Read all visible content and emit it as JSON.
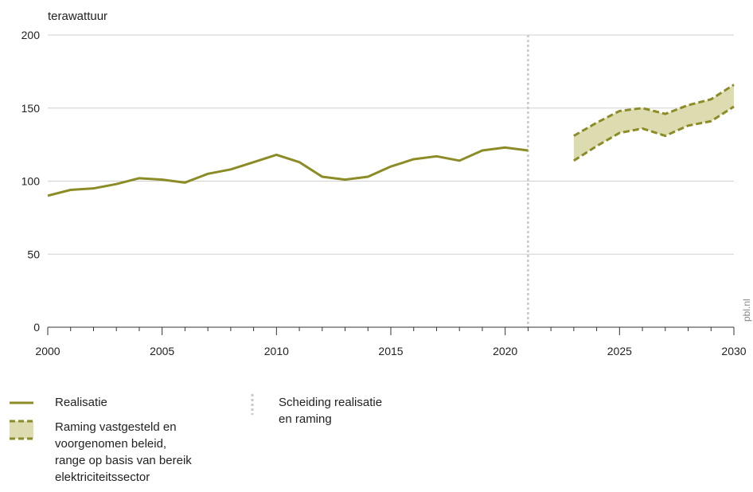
{
  "chart_data": {
    "type": "line",
    "unit_label": "terawattuur",
    "xlim": [
      2000,
      2030
    ],
    "ylim": [
      0,
      200
    ],
    "x_ticks": [
      2000,
      2005,
      2010,
      2015,
      2020,
      2025,
      2030
    ],
    "y_ticks": [
      0,
      50,
      100,
      150,
      200
    ],
    "grid": true,
    "divider_year": 2021,
    "watermark": "pbl.nl",
    "colors": {
      "line": "#8c8c26",
      "band_fill": "#dcdcb0",
      "divider": "#c8c8c8",
      "grid": "#d0d0d0",
      "axis": "#333333"
    },
    "series": [
      {
        "name": "Realisatie",
        "x": [
          2000,
          2001,
          2002,
          2003,
          2004,
          2005,
          2006,
          2007,
          2008,
          2009,
          2010,
          2011,
          2012,
          2013,
          2014,
          2015,
          2016,
          2017,
          2018,
          2019,
          2020,
          2021
        ],
        "values": [
          90,
          94,
          95,
          98,
          102,
          101,
          99,
          105,
          108,
          113,
          118,
          113,
          103,
          101,
          103,
          110,
          115,
          117,
          114,
          121,
          123,
          121
        ]
      }
    ],
    "band": {
      "name": "Raming vastgesteld en voorgenomen beleid, range op basis van bereik elektriciteitssector",
      "x": [
        2023,
        2024,
        2025,
        2026,
        2027,
        2028,
        2029,
        2030
      ],
      "upper": [
        131,
        140,
        148,
        150,
        146,
        152,
        156,
        166
      ],
      "lower": [
        114,
        124,
        133,
        136,
        131,
        138,
        141,
        151
      ]
    }
  },
  "legend": {
    "realisatie": "Realisatie",
    "raming": "Raming vastgesteld en\nvoorgenomen beleid,\nrange op basis van bereik\nelektriciteitssector",
    "scheiding": "Scheiding realisatie\nen raming"
  }
}
